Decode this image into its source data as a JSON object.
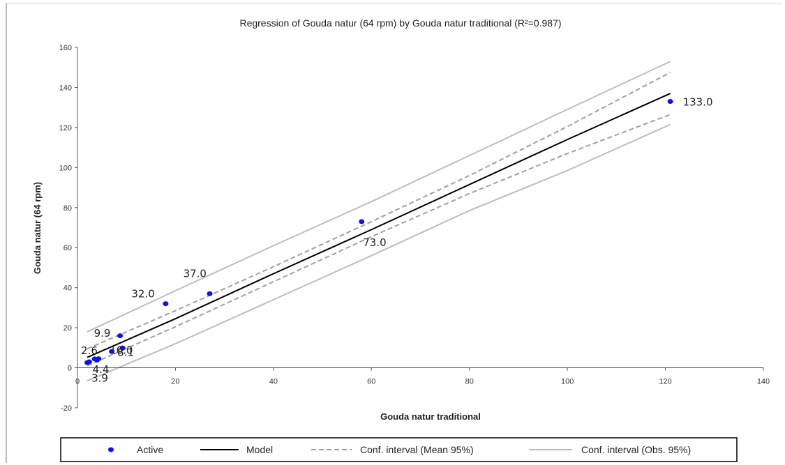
{
  "chart_data": {
    "type": "scatter",
    "title": "Regression of Gouda natur (64 rpm) by Gouda natur traditional (R²=0.987)",
    "xlabel": "Gouda natur traditional",
    "ylabel": "Gouda natur (64 rpm)",
    "xlim": [
      0,
      140
    ],
    "ylim": [
      -20,
      160
    ],
    "xticks": [
      0,
      20,
      40,
      60,
      80,
      100,
      120,
      140
    ],
    "yticks": [
      -20,
      0,
      20,
      40,
      60,
      80,
      100,
      120,
      140,
      160
    ],
    "grid": false,
    "legend_position": "bottom",
    "colors": {
      "points": "#0a14e6",
      "model": "#000000",
      "conf_mean": "#a0a0a0",
      "conf_obs": "#bdbdbd"
    },
    "series": [
      {
        "name": "Active",
        "kind": "points",
        "points": [
          {
            "x": 2.0,
            "y": 2.6,
            "label": "2.6"
          },
          {
            "x": 2.4,
            "y": 3.0,
            "label": ""
          },
          {
            "x": 3.5,
            "y": 4.4,
            "label": "4.4"
          },
          {
            "x": 4.0,
            "y": 3.9,
            "label": "3.9"
          },
          {
            "x": 4.3,
            "y": 4.5,
            "label": ""
          },
          {
            "x": 7.0,
            "y": 8.1,
            "label": "8.1"
          },
          {
            "x": 8.7,
            "y": 16.0,
            "label": "16.0"
          },
          {
            "x": 9.2,
            "y": 9.9,
            "label": "9.9"
          },
          {
            "x": 18.0,
            "y": 32.0,
            "label": "32.0"
          },
          {
            "x": 27.0,
            "y": 37.0,
            "label": "37.0"
          },
          {
            "x": 58.0,
            "y": 73.0,
            "label": "73.0"
          },
          {
            "x": 121.0,
            "y": 133.0,
            "label": "133.0"
          }
        ]
      },
      {
        "name": "Model",
        "kind": "line",
        "style": "solid",
        "points": [
          {
            "x": 2,
            "y": 5.2
          },
          {
            "x": 20,
            "y": 24.5
          },
          {
            "x": 40,
            "y": 47.0
          },
          {
            "x": 60,
            "y": 69.0
          },
          {
            "x": 80,
            "y": 91.5
          },
          {
            "x": 100,
            "y": 114.0
          },
          {
            "x": 121,
            "y": 137.0
          }
        ]
      },
      {
        "name": "Conf. interval (Mean 95%)",
        "kind": "band",
        "style": "dashed",
        "upper": [
          {
            "x": 2,
            "y": 9.5
          },
          {
            "x": 20,
            "y": 28.5
          },
          {
            "x": 40,
            "y": 50.5
          },
          {
            "x": 60,
            "y": 73.0
          },
          {
            "x": 80,
            "y": 96.0
          },
          {
            "x": 100,
            "y": 120.5
          },
          {
            "x": 121,
            "y": 147.5
          }
        ],
        "lower": [
          {
            "x": 2,
            "y": 1.0
          },
          {
            "x": 20,
            "y": 20.5
          },
          {
            "x": 40,
            "y": 43.0
          },
          {
            "x": 60,
            "y": 65.5
          },
          {
            "x": 80,
            "y": 87.0
          },
          {
            "x": 100,
            "y": 107.0
          },
          {
            "x": 121,
            "y": 126.5
          }
        ]
      },
      {
        "name": "Conf. interval (Obs. 95%)",
        "kind": "band",
        "style": "solid",
        "upper": [
          {
            "x": 2,
            "y": 18.0
          },
          {
            "x": 20,
            "y": 38.5
          },
          {
            "x": 40,
            "y": 61.0
          },
          {
            "x": 60,
            "y": 83.0
          },
          {
            "x": 80,
            "y": 106.0
          },
          {
            "x": 100,
            "y": 129.0
          },
          {
            "x": 121,
            "y": 153.0
          }
        ],
        "lower": [
          {
            "x": 2,
            "y": -6.5
          },
          {
            "x": 20,
            "y": 12.0
          },
          {
            "x": 40,
            "y": 34.0
          },
          {
            "x": 60,
            "y": 56.0
          },
          {
            "x": 80,
            "y": 78.5
          },
          {
            "x": 100,
            "y": 98.5
          },
          {
            "x": 121,
            "y": 121.5
          }
        ]
      }
    ],
    "legend": [
      "Active",
      "Model",
      "Conf. interval (Mean 95%)",
      "Conf. interval (Obs. 95%)"
    ]
  }
}
